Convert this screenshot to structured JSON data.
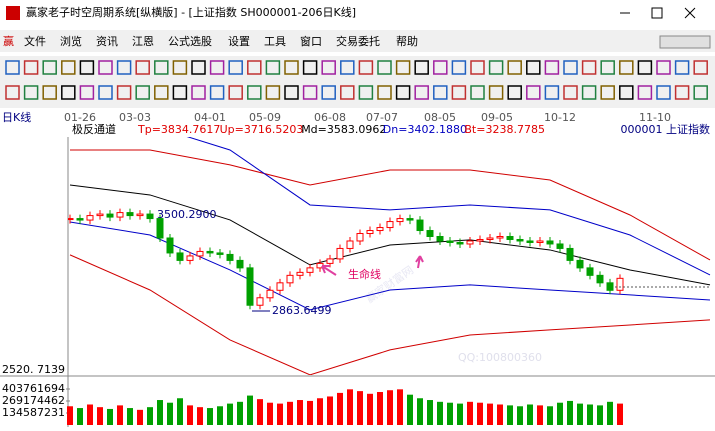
{
  "window": {
    "title": "赢家老子时空周期系统[纵横版] - [上证指数  SH000001-206日K线]"
  },
  "menu": [
    "文件",
    "浏览",
    "资讯",
    "江恩",
    "公式选股",
    "设置",
    "工具",
    "窗口",
    "交易委托",
    "帮助"
  ],
  "watermarks": [
    "赢家财富网",
    "QQ:100800360"
  ],
  "chart_data": {
    "type": "candle",
    "period_label": "日K线",
    "date_labels": [
      "01-26",
      "03-03",
      "04-01",
      "05-09",
      "06-08",
      "07-07",
      "08-05",
      "09-05",
      "10-12",
      "11-10"
    ],
    "indicator_name": "极反通道",
    "indicator_values": [
      "Tp=3834.7617",
      "Up=3716.5203",
      "Md=3583.0962",
      "Dn=3402.1880",
      "Bt=3238.7785"
    ],
    "symbol": "000001  上证指数",
    "annotations": [
      "3500.2900",
      "2863.6499",
      "生命线"
    ],
    "bottom_label": "2520. 7139",
    "ylim": [
      2480,
      4240
    ],
    "up_color": "#ff0000",
    "down_color": "#00a000",
    "close": [
      3480,
      3470,
      3500,
      3510,
      3490,
      3520,
      3500,
      3510,
      3480,
      3350,
      3250,
      3200,
      3230,
      3260,
      3250,
      3240,
      3200,
      3150,
      2900,
      2950,
      3000,
      3050,
      3100,
      3120,
      3150,
      3180,
      3210,
      3280,
      3330,
      3380,
      3400,
      3420,
      3460,
      3480,
      3470,
      3400,
      3360,
      3330,
      3320,
      3310,
      3330,
      3340,
      3350,
      3360,
      3340,
      3330,
      3320,
      3330,
      3310,
      3280,
      3200,
      3150,
      3100,
      3050,
      3000,
      3080
    ],
    "channels": {
      "x": [
        0,
        8,
        16,
        24,
        32,
        40,
        48,
        56,
        64
      ],
      "series": [
        {
          "color": "#d00000",
          "values": [
            3939,
            3939,
            3839,
            3705,
            3805,
            3805,
            3738,
            3504,
            3203
          ]
        },
        {
          "color": "#0000c8",
          "values": [
            4220,
            4106,
            3939,
            3571,
            3538,
            3571,
            3538,
            3370,
            3103
          ]
        },
        {
          "color": "#000000",
          "values": [
            3705,
            3638,
            3471,
            3170,
            3303,
            3337,
            3270,
            3136,
            3036
          ]
        },
        {
          "color": "#0000c8",
          "values": [
            3457,
            3370,
            3136,
            2869,
            3002,
            3036,
            3002,
            2969,
            2935
          ]
        },
        {
          "color": "#d00000",
          "values": [
            3237,
            3002,
            2668,
            2434,
            2601,
            2701,
            2735,
            2768,
            2802
          ]
        }
      ]
    },
    "volume": [
      210000000,
      190000000,
      230000000,
      200000000,
      180000000,
      220000000,
      190000000,
      170000000,
      200000000,
      280000000,
      250000000,
      300000000,
      220000000,
      200000000,
      190000000,
      210000000,
      240000000,
      260000000,
      330000000,
      290000000,
      250000000,
      240000000,
      260000000,
      280000000,
      270000000,
      300000000,
      320000000,
      360000000,
      400000000,
      380000000,
      350000000,
      370000000,
      390000000,
      400000000,
      340000000,
      300000000,
      280000000,
      260000000,
      250000000,
      240000000,
      260000000,
      250000000,
      240000000,
      230000000,
      220000000,
      210000000,
      230000000,
      220000000,
      210000000,
      250000000,
      270000000,
      240000000,
      230000000,
      220000000,
      260000000,
      240000000
    ],
    "volume_ylim": [
      0,
      538348924
    ],
    "volume_ticks": [
      403761694,
      269174462,
      134587231
    ]
  }
}
